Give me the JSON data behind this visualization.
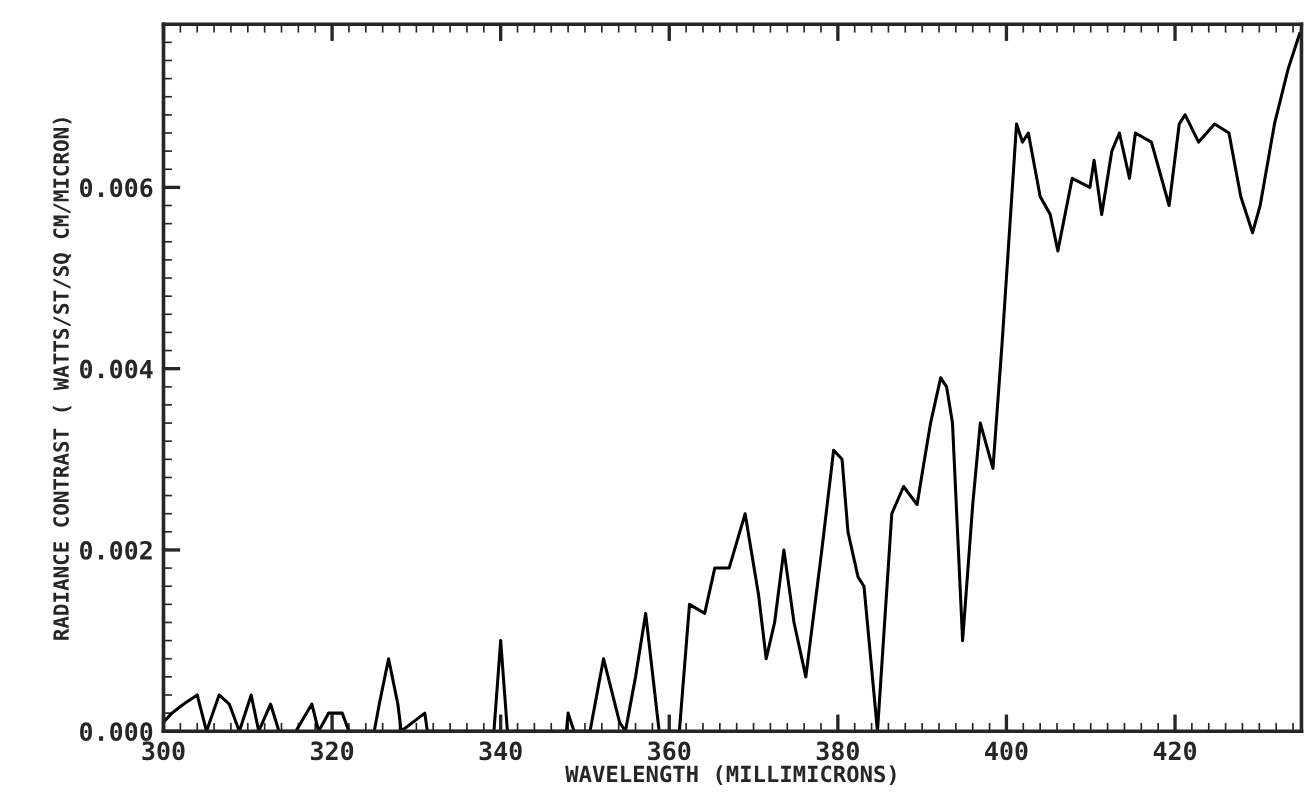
{
  "chart_data": {
    "type": "line",
    "xlabel": "WAVELENGTH (MILLIMICRONS)",
    "ylabel": "RADIANCE CONTRAST ( WATTS/ST/SQ CM/MICRON)",
    "x": [
      300,
      301,
      302.4,
      304,
      305.1,
      306.6,
      307.8,
      309,
      310.4,
      311.3,
      312.7,
      313.7,
      315.7,
      317.6,
      318.4,
      319.6,
      321.2,
      322,
      325,
      325.6,
      326.7,
      327.8,
      328.2,
      331,
      331.3,
      339.2,
      340,
      340.8,
      347.8,
      348,
      348.7,
      350.6,
      352.2,
      354.1,
      354.8,
      356,
      357.2,
      358.8,
      361.2,
      362.4,
      364.2,
      365.4,
      367.1,
      369,
      370.6,
      371.5,
      372.5,
      373.6,
      374.8,
      376.2,
      378.1,
      379.5,
      380.5,
      381.2,
      382.4,
      383.1,
      384.7,
      386.4,
      387.8,
      389.4,
      390.1,
      391,
      392.2,
      392.9,
      393.6,
      394.8,
      396,
      396.9,
      398.4,
      399.5,
      401.2,
      401.9,
      402.6,
      404,
      405.2,
      406.1,
      407.8,
      409.9,
      410.4,
      411.3,
      412.5,
      413.4,
      414.6,
      415.3,
      417.2,
      419.3,
      420.5,
      421.2,
      422.8,
      424.7,
      426.4,
      427.8,
      429.2,
      430.1,
      431.8,
      433.4,
      434.8
    ],
    "series": [
      {
        "color": "#000000",
        "values": [
          0.0001,
          0.0002,
          0.0003,
          0.0004,
          0.0,
          0.0004,
          0.0003,
          0.0,
          0.0004,
          0.0,
          0.0003,
          0.0,
          0.0,
          0.0003,
          0.0,
          0.0002,
          0.0002,
          0.0,
          0.0,
          0.0003,
          0.0008,
          0.0003,
          0.0,
          0.0002,
          0.0,
          0.0,
          0.001,
          0.0,
          0.0,
          0.0002,
          0.0,
          0.0,
          0.0008,
          0.0001,
          0.0,
          0.0006,
          0.0013,
          0.0,
          0.0,
          0.0014,
          0.0013,
          0.0018,
          0.0018,
          0.0024,
          0.0015,
          0.0008,
          0.0012,
          0.002,
          0.0012,
          0.0006,
          0.002,
          0.0031,
          0.003,
          0.0022,
          0.0017,
          0.0016,
          0.0,
          0.0024,
          0.0027,
          0.0025,
          0.0029,
          0.0034,
          0.0039,
          0.0038,
          0.0034,
          0.001,
          0.0025,
          0.0034,
          0.0029,
          0.0043,
          0.0067,
          0.0065,
          0.0066,
          0.0059,
          0.0057,
          0.0053,
          0.0061,
          0.006,
          0.0063,
          0.0057,
          0.0064,
          0.0066,
          0.0061,
          0.0066,
          0.0065,
          0.0058,
          0.0067,
          0.0068,
          0.0065,
          0.0067,
          0.0066,
          0.0059,
          0.0055,
          0.0058,
          0.0067,
          0.0073,
          0.0077
        ]
      }
    ],
    "xlim": [
      300,
      435
    ],
    "ylim": [
      0,
      0.0078
    ],
    "xticks": [
      300,
      320,
      340,
      360,
      380,
      400,
      420
    ],
    "yticks": [
      {
        "value": 0,
        "label": "0.000"
      },
      {
        "value": 0.002,
        "label": "0.002"
      },
      {
        "value": 0.004,
        "label": "0.004"
      },
      {
        "value": 0.006,
        "label": "0.006"
      }
    ],
    "grid": false,
    "legend": false,
    "marker": "none",
    "line_style": "solid"
  }
}
